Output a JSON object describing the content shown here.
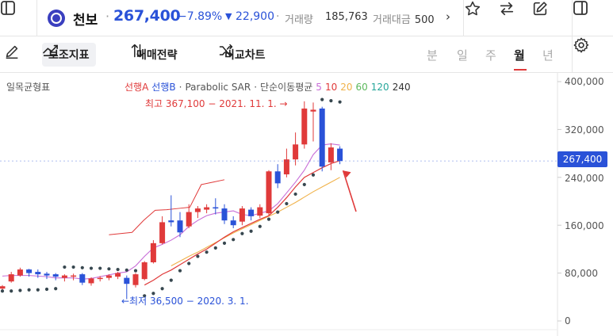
{
  "header": {
    "name": "천보",
    "separator": "·",
    "price": "267,400",
    "change_rate": "−7.89%",
    "change_arrow": "▼",
    "change_amount": "22,900",
    "volume_label": "거래량",
    "volume_value": "185,763",
    "amount_label": "거래대금",
    "amount_value": "500",
    "more_arrow": "›"
  },
  "toolbar": {
    "indicators_label": "보조지표",
    "strategy_label": "매매전략",
    "compare_label": "비교차트",
    "periods": [
      "분",
      "일",
      "주",
      "월",
      "년"
    ],
    "active_period": "월"
  },
  "icons": {
    "left_panel": "sidebar-left-icon",
    "logo": "company-logo-icon",
    "favorite": "star-icon",
    "swap": "swap-arrows-icon",
    "edit": "edit-icon",
    "right_panel": "sidebar-right-icon",
    "draw": "pen-icon",
    "indicators": "chart-line-icon",
    "strategy": "sort-arrows-icon",
    "compare": "shuffle-icon",
    "settings": "gear-icon"
  },
  "colors": {
    "up": "#e03a3a",
    "down": "#2a52d8",
    "sar_dots": "#37474f",
    "ma5": "#c86dd7",
    "ma10": "#e03a3a",
    "ma20": "#f0b24a",
    "ichimoku_lead_a": "#e03a3a"
  },
  "chart_data": {
    "type": "candlestick",
    "indicator_panel_label": "일목균형표",
    "legend": {
      "lead_a": "선행A",
      "lead_b": "선행B",
      "sep1": "·",
      "sar": "Parabolic SAR",
      "sep2": "·",
      "ma_label": "단순이동평균",
      "ma_periods": [
        "5",
        "10",
        "20",
        "60",
        "120",
        "240"
      ]
    },
    "annotations": {
      "high": "최고 367,100 − 2021. 11. 1. →",
      "low": "←최저 36,500 − 2020. 3. 1."
    },
    "y_ticks": [
      "400,000",
      "320,000",
      "240,000",
      "160,000",
      "80,000",
      "0"
    ],
    "y_tick_values": [
      400000,
      320000,
      240000,
      160000,
      80000,
      0
    ],
    "ylim": [
      0,
      400000
    ],
    "current_price_label": "267,400",
    "current_price": 267400,
    "candles": [
      {
        "o": 54000,
        "c": 58000,
        "h": 60000,
        "l": 50000
      },
      {
        "o": 66000,
        "c": 78000,
        "h": 82000,
        "l": 64000
      },
      {
        "o": 76000,
        "c": 86000,
        "h": 89000,
        "l": 74000
      },
      {
        "o": 86000,
        "c": 80000,
        "h": 87000,
        "l": 74000
      },
      {
        "o": 82000,
        "c": 78000,
        "h": 86000,
        "l": 72000
      },
      {
        "o": 79000,
        "c": 76000,
        "h": 82000,
        "l": 70000
      },
      {
        "o": 78000,
        "c": 74000,
        "h": 80000,
        "l": 68000
      },
      {
        "o": 72000,
        "c": 76000,
        "h": 78000,
        "l": 66000
      },
      {
        "o": 74000,
        "c": 76000,
        "h": 79000,
        "l": 68000
      },
      {
        "o": 78000,
        "c": 64000,
        "h": 80000,
        "l": 60000
      },
      {
        "o": 63000,
        "c": 71000,
        "h": 73000,
        "l": 59000
      },
      {
        "o": 70000,
        "c": 72000,
        "h": 75000,
        "l": 66000
      },
      {
        "o": 72000,
        "c": 76000,
        "h": 78000,
        "l": 68000
      },
      {
        "o": 74000,
        "c": 80000,
        "h": 82000,
        "l": 70000
      },
      {
        "o": 72000,
        "c": 62000,
        "h": 76000,
        "l": 36500
      },
      {
        "o": 60000,
        "c": 78000,
        "h": 80000,
        "l": 56000
      },
      {
        "o": 70000,
        "c": 98000,
        "h": 100000,
        "l": 68000
      },
      {
        "o": 98000,
        "c": 130000,
        "h": 135000,
        "l": 96000
      },
      {
        "o": 130000,
        "c": 165000,
        "h": 175000,
        "l": 128000
      },
      {
        "o": 168000,
        "c": 165000,
        "h": 210000,
        "l": 158000
      },
      {
        "o": 168000,
        "c": 148000,
        "h": 182000,
        "l": 140000
      },
      {
        "o": 158000,
        "c": 182000,
        "h": 195000,
        "l": 155000
      },
      {
        "o": 182000,
        "c": 188000,
        "h": 192000,
        "l": 172000
      },
      {
        "o": 186000,
        "c": 190000,
        "h": 195000,
        "l": 180000
      },
      {
        "o": 190000,
        "c": 188000,
        "h": 205000,
        "l": 178000
      },
      {
        "o": 188000,
        "c": 168000,
        "h": 195000,
        "l": 162000
      },
      {
        "o": 168000,
        "c": 160000,
        "h": 175000,
        "l": 155000
      },
      {
        "o": 166000,
        "c": 188000,
        "h": 192000,
        "l": 160000
      },
      {
        "o": 186000,
        "c": 175000,
        "h": 190000,
        "l": 168000
      },
      {
        "o": 176000,
        "c": 190000,
        "h": 195000,
        "l": 172000
      },
      {
        "o": 180000,
        "c": 250000,
        "h": 252000,
        "l": 176000
      },
      {
        "o": 250000,
        "c": 230000,
        "h": 262000,
        "l": 222000
      },
      {
        "o": 245000,
        "c": 270000,
        "h": 288000,
        "l": 240000
      },
      {
        "o": 270000,
        "c": 295000,
        "h": 315000,
        "l": 260000
      },
      {
        "o": 295000,
        "c": 355000,
        "h": 367100,
        "l": 288000
      },
      {
        "o": 350000,
        "c": 353000,
        "h": 365000,
        "l": 300000
      },
      {
        "o": 355000,
        "c": 258000,
        "h": 358000,
        "l": 250000
      },
      {
        "o": 265000,
        "c": 290000,
        "h": 297000,
        "l": 252000
      },
      {
        "o": 288000,
        "c": 267400,
        "h": 292000,
        "l": 262000
      }
    ],
    "ma5": [
      75000,
      76000,
      76000,
      76000,
      75000,
      74000,
      72000,
      72000,
      72000,
      70000,
      71000,
      74000,
      77000,
      80000,
      82000,
      92000,
      108000,
      122000,
      128000,
      135000,
      144000,
      158000,
      168000,
      176000,
      180000,
      182000,
      184000,
      178000,
      176000,
      180000,
      184000,
      196000,
      214000,
      232000,
      252000,
      278000,
      294000,
      296000,
      294000
    ],
    "ma10": [
      60000,
      68000,
      78000,
      85000,
      94000,
      103000,
      112000,
      120000,
      130000,
      140000,
      149000,
      156000,
      163000,
      170000,
      176000,
      190000,
      206000,
      224000,
      240000,
      248000,
      256000,
      263000,
      268000
    ],
    "ma20": [
      92000,
      100000,
      108000,
      115000,
      123000,
      131000,
      139000,
      147000,
      154000,
      161000,
      168000,
      175000,
      182000,
      190000,
      198000,
      207000,
      216000,
      224000,
      232000,
      240000
    ],
    "lead_a": [
      144000,
      146000,
      148000,
      168000,
      185000,
      186000,
      188000,
      190000,
      228000,
      232000,
      236000
    ],
    "parabolic_sar": [
      50000,
      50000,
      51000,
      52000,
      52000,
      53000,
      54000,
      90000,
      90000,
      89000,
      88000,
      88000,
      87000,
      86000,
      85000,
      84000,
      42000,
      46000,
      54000,
      68000,
      84000,
      96000,
      108000,
      115000,
      122000,
      130000,
      136000,
      146000,
      150000,
      158000,
      170000,
      182000,
      196000,
      212000,
      228000,
      244000,
      370000,
      368000,
      366000
    ]
  }
}
